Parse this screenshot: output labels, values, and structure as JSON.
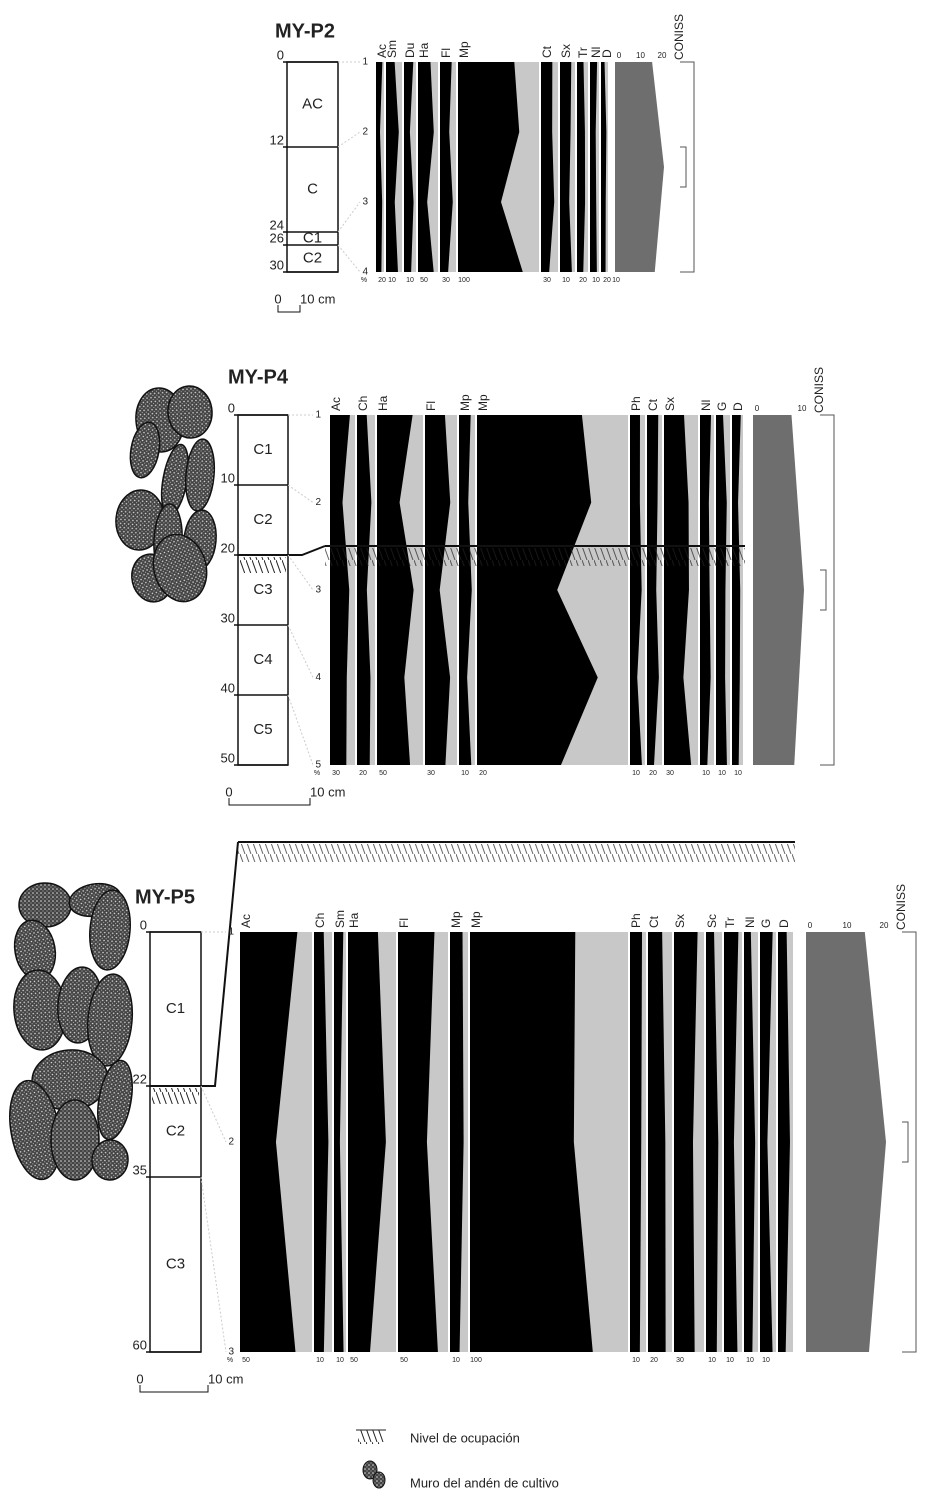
{
  "panels": [
    {
      "title": "MY-P2",
      "depths": [
        "0",
        "12",
        "24",
        "26",
        "30"
      ],
      "units": [
        "AC",
        "C",
        "C1",
        "C2"
      ],
      "samples": [
        "1",
        "2",
        "3",
        "4"
      ],
      "taxa": [
        "Ac",
        "Sm",
        "Du",
        "Ha",
        "Fl",
        "Mp",
        "Ct",
        "Sx",
        "Tr",
        "Nl",
        "D"
      ],
      "scale_labels": [
        "%",
        "20",
        "10",
        "10",
        "50",
        "30",
        "100",
        "30",
        "10",
        "20",
        "10",
        "20",
        "10"
      ],
      "coniss_ticks": [
        "0",
        "10",
        "20"
      ],
      "coniss": "CONISS",
      "scale_bar": [
        "0",
        "10 cm"
      ]
    },
    {
      "title": "MY-P4",
      "depths": [
        "0",
        "10",
        "20",
        "30",
        "40",
        "50"
      ],
      "units": [
        "C1",
        "C2",
        "C3",
        "C4",
        "C5"
      ],
      "samples": [
        "1",
        "2",
        "3",
        "4",
        "5"
      ],
      "taxa": [
        "Ac",
        "Ch",
        "Ha",
        "Fl",
        "Mp",
        "Mp",
        "Ph",
        "Ct",
        "Sx",
        "Nl",
        "G",
        "D"
      ],
      "scale_labels": [
        "%",
        "30",
        "20",
        "50",
        "30",
        "10",
        "20",
        "10",
        "20",
        "30",
        "10",
        "10",
        "10"
      ],
      "coniss_ticks": [
        "0",
        "10"
      ],
      "coniss": "CONISS",
      "scale_bar": [
        "0",
        "10 cm"
      ]
    },
    {
      "title": "MY-P5",
      "depths": [
        "0",
        "22",
        "35",
        "60"
      ],
      "units": [
        "C1",
        "C2",
        "C3"
      ],
      "samples": [
        "1",
        "2",
        "3"
      ],
      "taxa": [
        "Ac",
        "Ch",
        "Sm",
        "Ha",
        "Fl",
        "Mp",
        "Mp",
        "Ph",
        "Ct",
        "Sx",
        "Sc",
        "Tr",
        "Nl",
        "G",
        "D"
      ],
      "scale_labels": [
        "%",
        "50",
        "10",
        "10",
        "50",
        "50",
        "10",
        "100",
        "10",
        "20",
        "30",
        "10",
        "10",
        "10",
        "10"
      ],
      "coniss_ticks": [
        "0",
        "10",
        "20"
      ],
      "coniss": "CONISS",
      "scale_bar": [
        "0",
        "10 cm"
      ]
    }
  ],
  "legend": [
    "Nivel de ocupación",
    "Muro del andén de cultivo"
  ]
}
